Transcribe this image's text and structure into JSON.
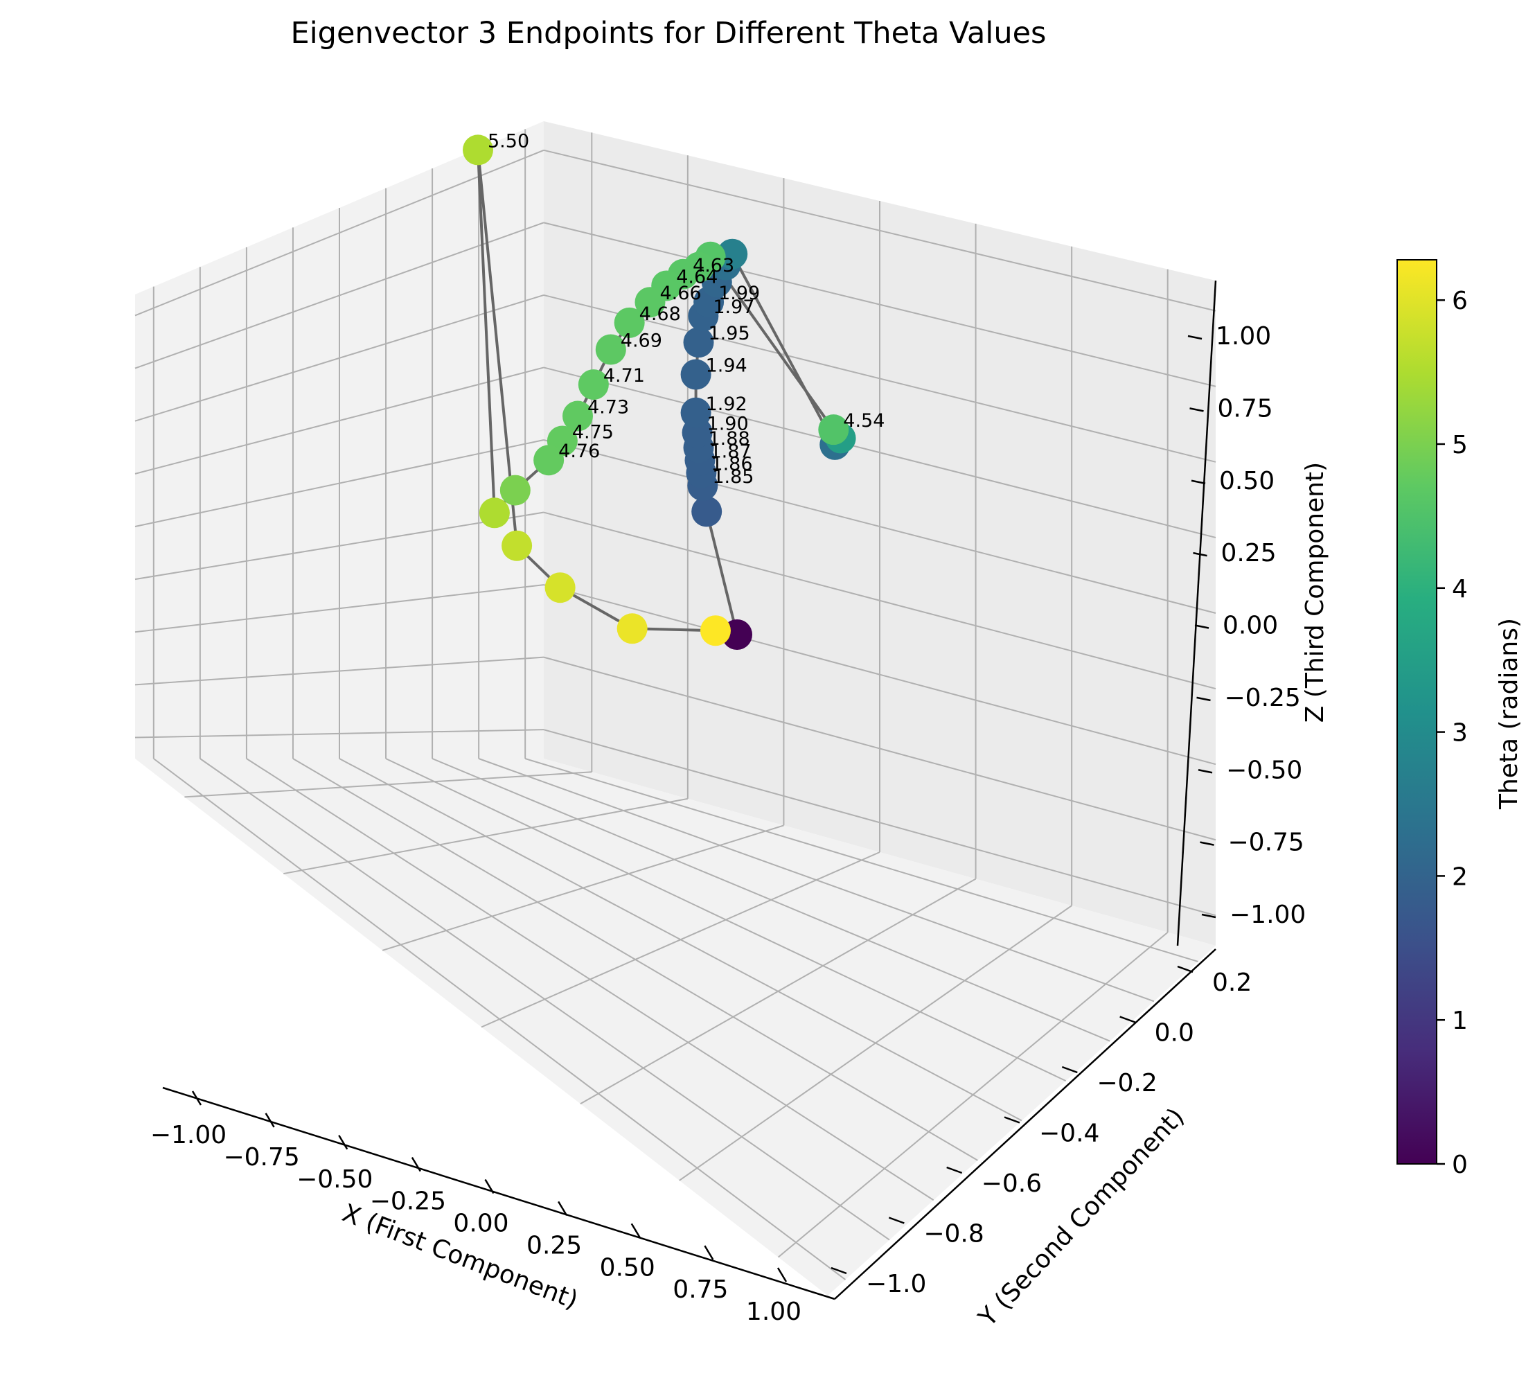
{
  "chart_data": {
    "type": "scatter",
    "projection": "3d",
    "title": "Eigenvector 3 Endpoints for Different Theta Values",
    "xlabel": "X (First Component)",
    "ylabel": "Y (Second Component)",
    "zlabel": "Z (Third Component)",
    "xlim": [
      -1.1,
      1.1
    ],
    "ylim": [
      -1.1,
      0.3
    ],
    "zlim": [
      -1.1,
      1.1
    ],
    "x_ticks": [
      "−1.00",
      "−0.75",
      "−0.50",
      "−0.25",
      "0.00",
      "0.25",
      "0.50",
      "0.75",
      "1.00"
    ],
    "y_ticks": [
      "−1.0",
      "−0.8",
      "−0.6",
      "−0.4",
      "−0.2",
      "0.0",
      "0.2"
    ],
    "z_ticks": [
      "−1.00",
      "−0.75",
      "−0.50",
      "−0.25",
      "0.00",
      "0.25",
      "0.50",
      "0.75",
      "1.00"
    ],
    "grid": true,
    "colorbar": {
      "label": "Theta (radians)",
      "min": 0,
      "max": 6.28,
      "ticks": [
        "0",
        "1",
        "2",
        "3",
        "4",
        "5",
        "6"
      ],
      "colormap": "viridis"
    },
    "line_color": "#666666",
    "points": [
      {
        "theta": 0.0,
        "x": -0.45,
        "y": 0.0,
        "z": -1.0,
        "label": ""
      },
      {
        "theta": 1.8,
        "x": -0.9,
        "y": 0.0,
        "z": -0.55,
        "label": ""
      },
      {
        "theta": 1.85,
        "x": -0.96,
        "y": 0.0,
        "z": -0.45,
        "label": "1.85"
      },
      {
        "theta": 1.86,
        "x": -0.98,
        "y": 0.0,
        "z": -0.4,
        "label": "1.86"
      },
      {
        "theta": 1.87,
        "x": -1.0,
        "y": 0.0,
        "z": -0.35,
        "label": "1.87"
      },
      {
        "theta": 1.88,
        "x": -1.02,
        "y": 0.0,
        "z": -0.3,
        "label": "1.88"
      },
      {
        "theta": 1.9,
        "x": -1.04,
        "y": 0.0,
        "z": -0.24,
        "label": "1.90"
      },
      {
        "theta": 1.92,
        "x": -1.06,
        "y": 0.0,
        "z": -0.16,
        "label": "1.92"
      },
      {
        "theta": 1.94,
        "x": -1.06,
        "y": 0.0,
        "z": 0.0,
        "label": "1.94"
      },
      {
        "theta": 1.95,
        "x": -1.02,
        "y": 0.0,
        "z": 0.14,
        "label": "1.95"
      },
      {
        "theta": 1.97,
        "x": -0.95,
        "y": 0.0,
        "z": 0.26,
        "label": "1.97"
      },
      {
        "theta": 1.99,
        "x": -0.87,
        "y": 0.0,
        "z": 0.33,
        "label": "1.99"
      },
      {
        "theta": 2.05,
        "x": -0.75,
        "y": 0.0,
        "z": 0.43,
        "label": ""
      },
      {
        "theta": 2.3,
        "x": -0.62,
        "y": 0.0,
        "z": 0.52,
        "label": ""
      },
      {
        "theta": 2.7,
        "x": -0.52,
        "y": 0.0,
        "z": 0.58,
        "label": ""
      },
      {
        "theta": 2.3,
        "x": 1.0,
        "y": 0.0,
        "z": 0.0,
        "label": ""
      },
      {
        "theta": 3.5,
        "x": 1.0,
        "y": 0.02,
        "z": 0.02,
        "label": ""
      },
      {
        "theta": 4.54,
        "x": 0.98,
        "y": 0.0,
        "z": 0.06,
        "label": "4.54"
      },
      {
        "theta": 4.58,
        "x": -0.52,
        "y": -0.05,
        "z": 0.55,
        "label": ""
      },
      {
        "theta": 4.61,
        "x": -0.5,
        "y": -0.08,
        "z": 0.5,
        "label": ""
      },
      {
        "theta": 4.63,
        "x": -0.48,
        "y": -0.12,
        "z": 0.46,
        "label": "4.63"
      },
      {
        "theta": 4.64,
        "x": -0.47,
        "y": -0.16,
        "z": 0.4,
        "label": "4.64"
      },
      {
        "theta": 4.66,
        "x": -0.46,
        "y": -0.2,
        "z": 0.32,
        "label": "4.66"
      },
      {
        "theta": 4.68,
        "x": -0.45,
        "y": -0.25,
        "z": 0.22,
        "label": "4.68"
      },
      {
        "theta": 4.69,
        "x": -0.42,
        "y": -0.3,
        "z": 0.1,
        "label": "4.69"
      },
      {
        "theta": 4.71,
        "x": -0.38,
        "y": -0.35,
        "z": -0.05,
        "label": "4.71"
      },
      {
        "theta": 4.73,
        "x": -0.33,
        "y": -0.4,
        "z": -0.18,
        "label": "4.73"
      },
      {
        "theta": 4.75,
        "x": -0.28,
        "y": -0.45,
        "z": -0.28,
        "label": "4.75"
      },
      {
        "theta": 4.76,
        "x": -0.22,
        "y": -0.5,
        "z": -0.35,
        "label": "4.76"
      },
      {
        "theta": 5.0,
        "x": -0.1,
        "y": -0.62,
        "z": -0.45,
        "label": ""
      },
      {
        "theta": 5.5,
        "x": -0.02,
        "y": -0.7,
        "z": -0.52,
        "label": ""
      },
      {
        "theta": 5.5,
        "x": 0.0,
        "y": -0.75,
        "z": 1.0,
        "label": "5.50"
      },
      {
        "theta": 5.7,
        "x": -0.15,
        "y": -0.6,
        "z": -0.7,
        "label": ""
      },
      {
        "theta": 5.9,
        "x": -0.3,
        "y": -0.45,
        "z": -0.9,
        "label": ""
      },
      {
        "theta": 6.1,
        "x": -0.42,
        "y": -0.25,
        "z": -1.05,
        "label": ""
      },
      {
        "theta": 6.28,
        "x": -0.45,
        "y": -0.05,
        "z": -1.0,
        "label": ""
      }
    ]
  }
}
